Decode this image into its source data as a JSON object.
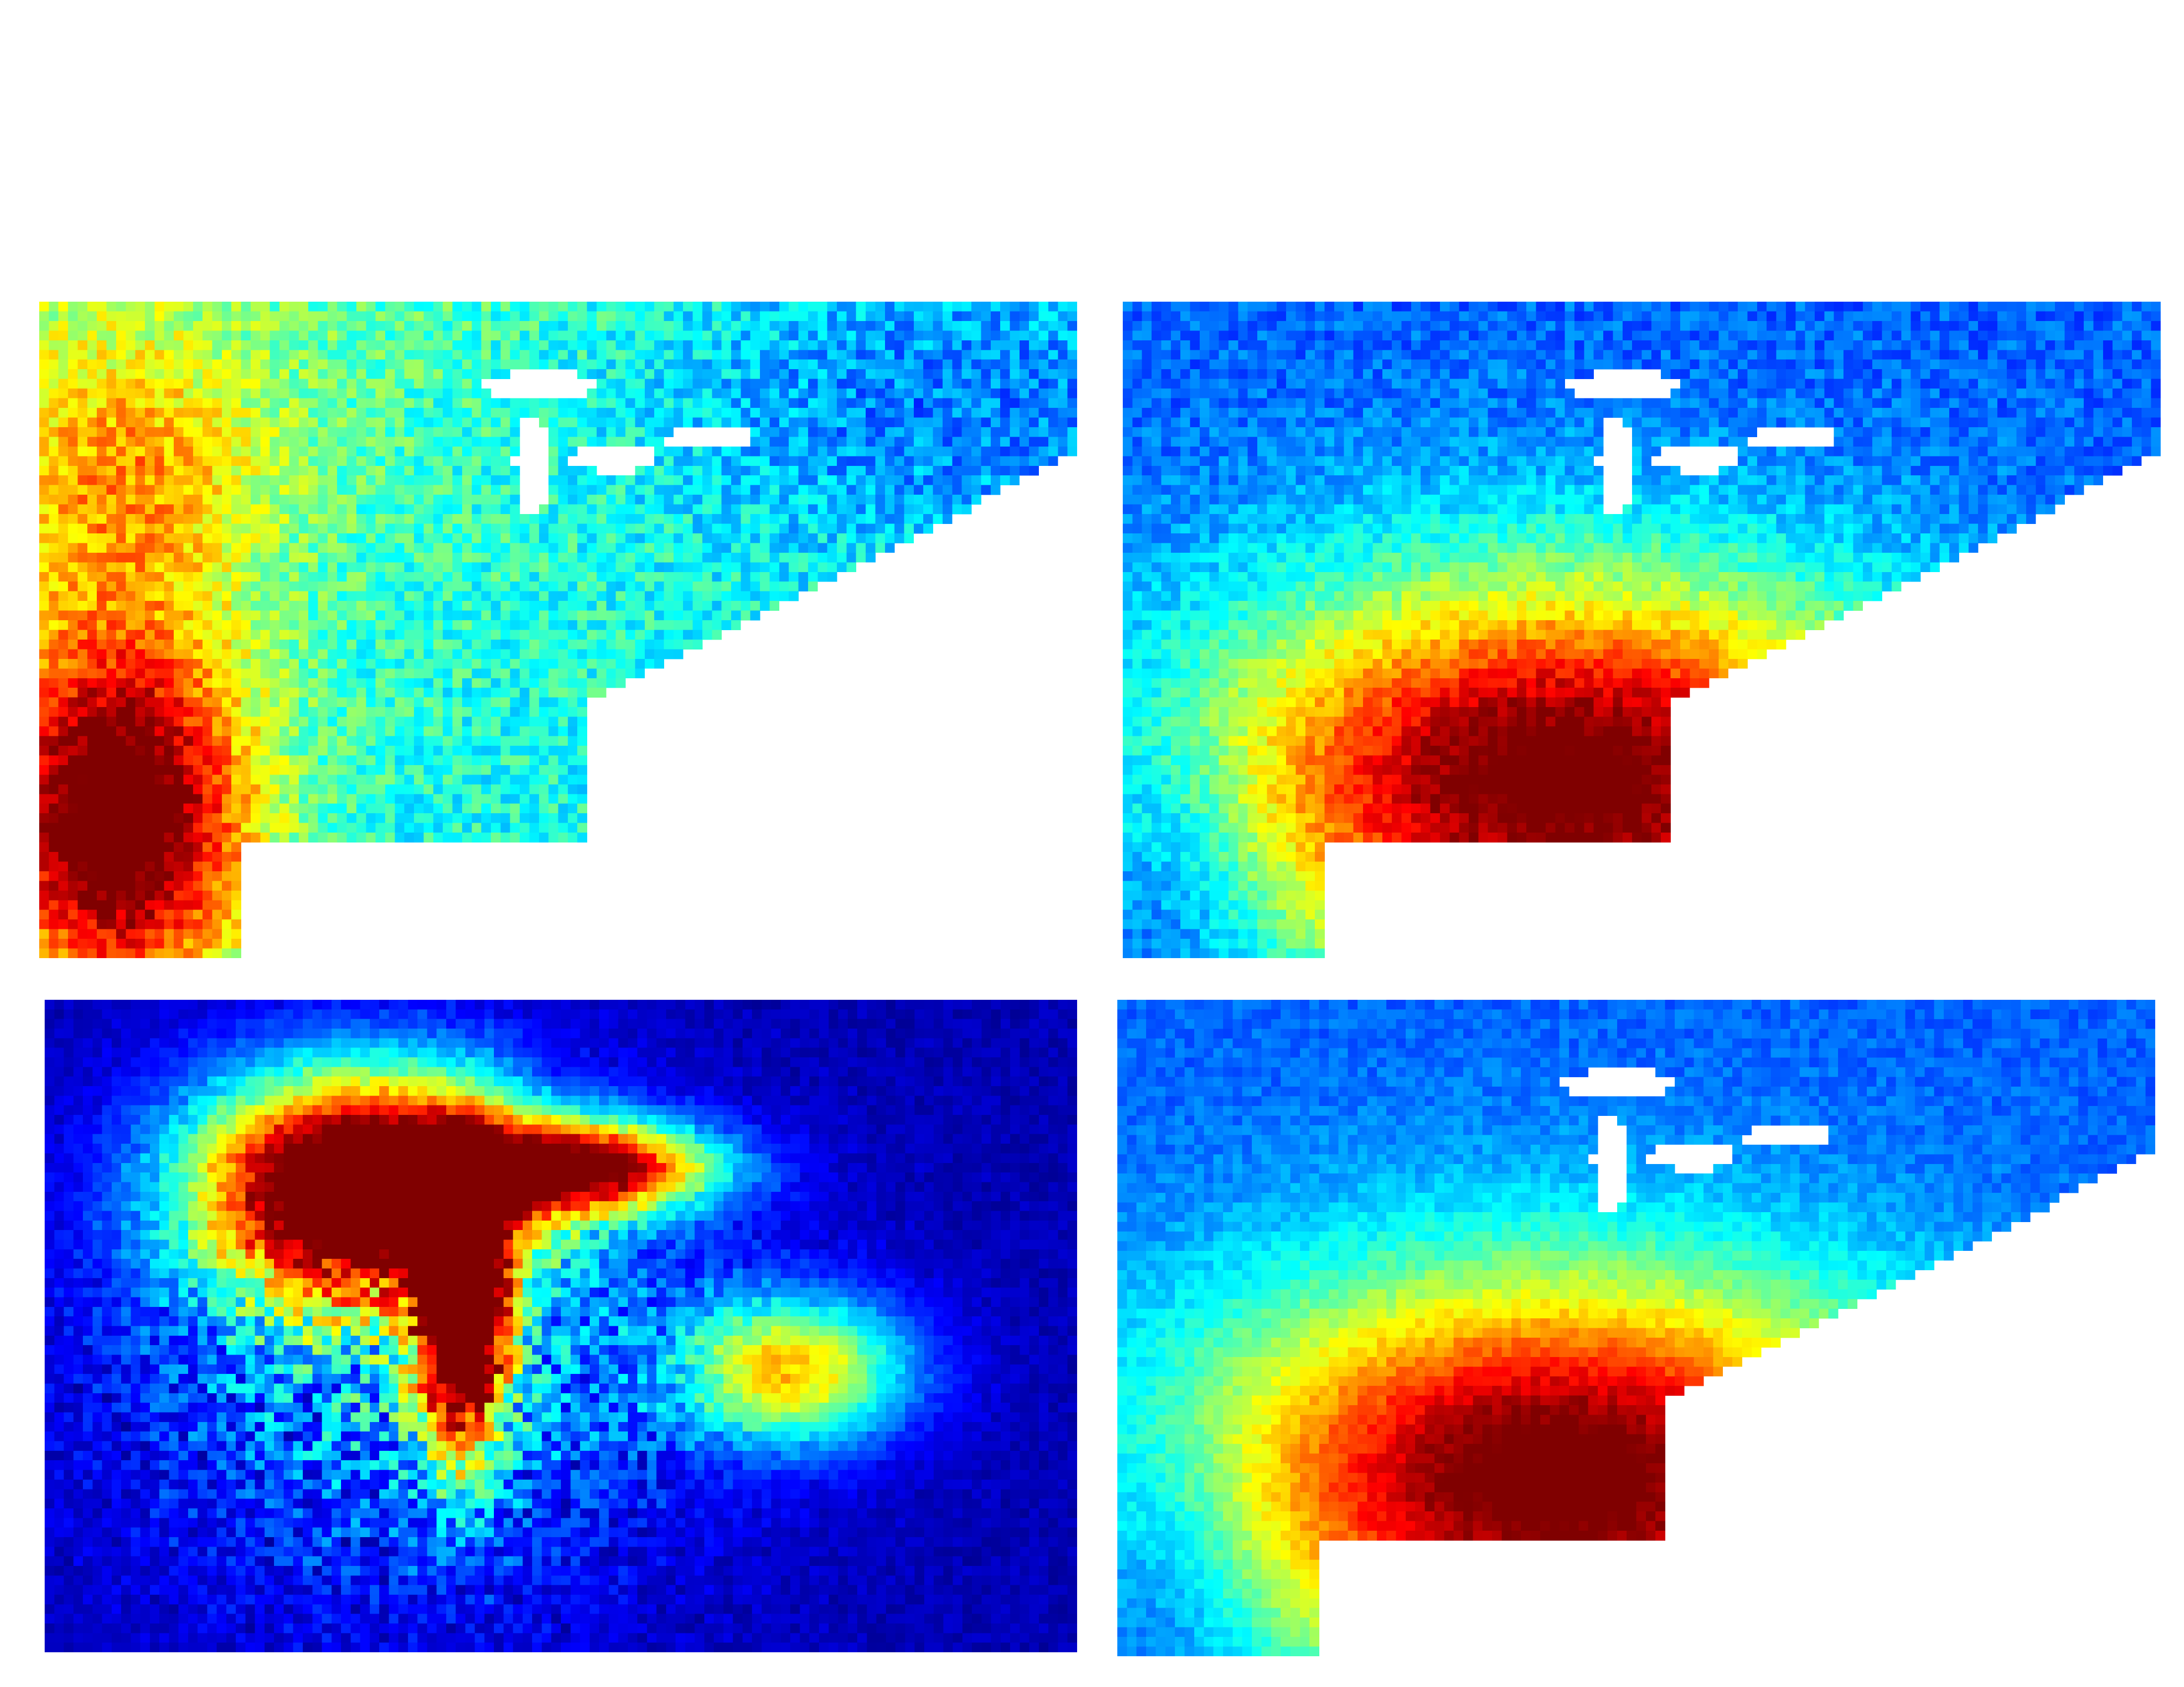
{
  "chart_data": [
    {
      "type": "heatmap",
      "id": "top-left",
      "colormap": "jet",
      "grid": [
        108,
        68
      ],
      "background": "#ffffff",
      "masked_color": "#ffffff",
      "pattern": "west-hotspot",
      "title": "",
      "xlabel": "",
      "ylabel": ""
    },
    {
      "type": "heatmap",
      "id": "top-right",
      "colormap": "jet",
      "grid": [
        108,
        68
      ],
      "background": "#ffffff",
      "masked_color": "#ffffff",
      "pattern": "southeast-gradient",
      "title": "",
      "xlabel": "",
      "ylabel": ""
    },
    {
      "type": "heatmap",
      "id": "bottom-left",
      "colormap": "jet",
      "grid": [
        108,
        68
      ],
      "background": "#0800ff",
      "masked_color": "#0800ff",
      "pattern": "river-network",
      "title": "",
      "xlabel": "",
      "ylabel": ""
    },
    {
      "type": "heatmap",
      "id": "bottom-right",
      "colormap": "jet",
      "grid": [
        108,
        68
      ],
      "background": "#ffffff",
      "masked_color": "#ffffff",
      "pattern": "southeast-gradient-smooth",
      "title": "",
      "xlabel": "",
      "ylabel": ""
    }
  ]
}
